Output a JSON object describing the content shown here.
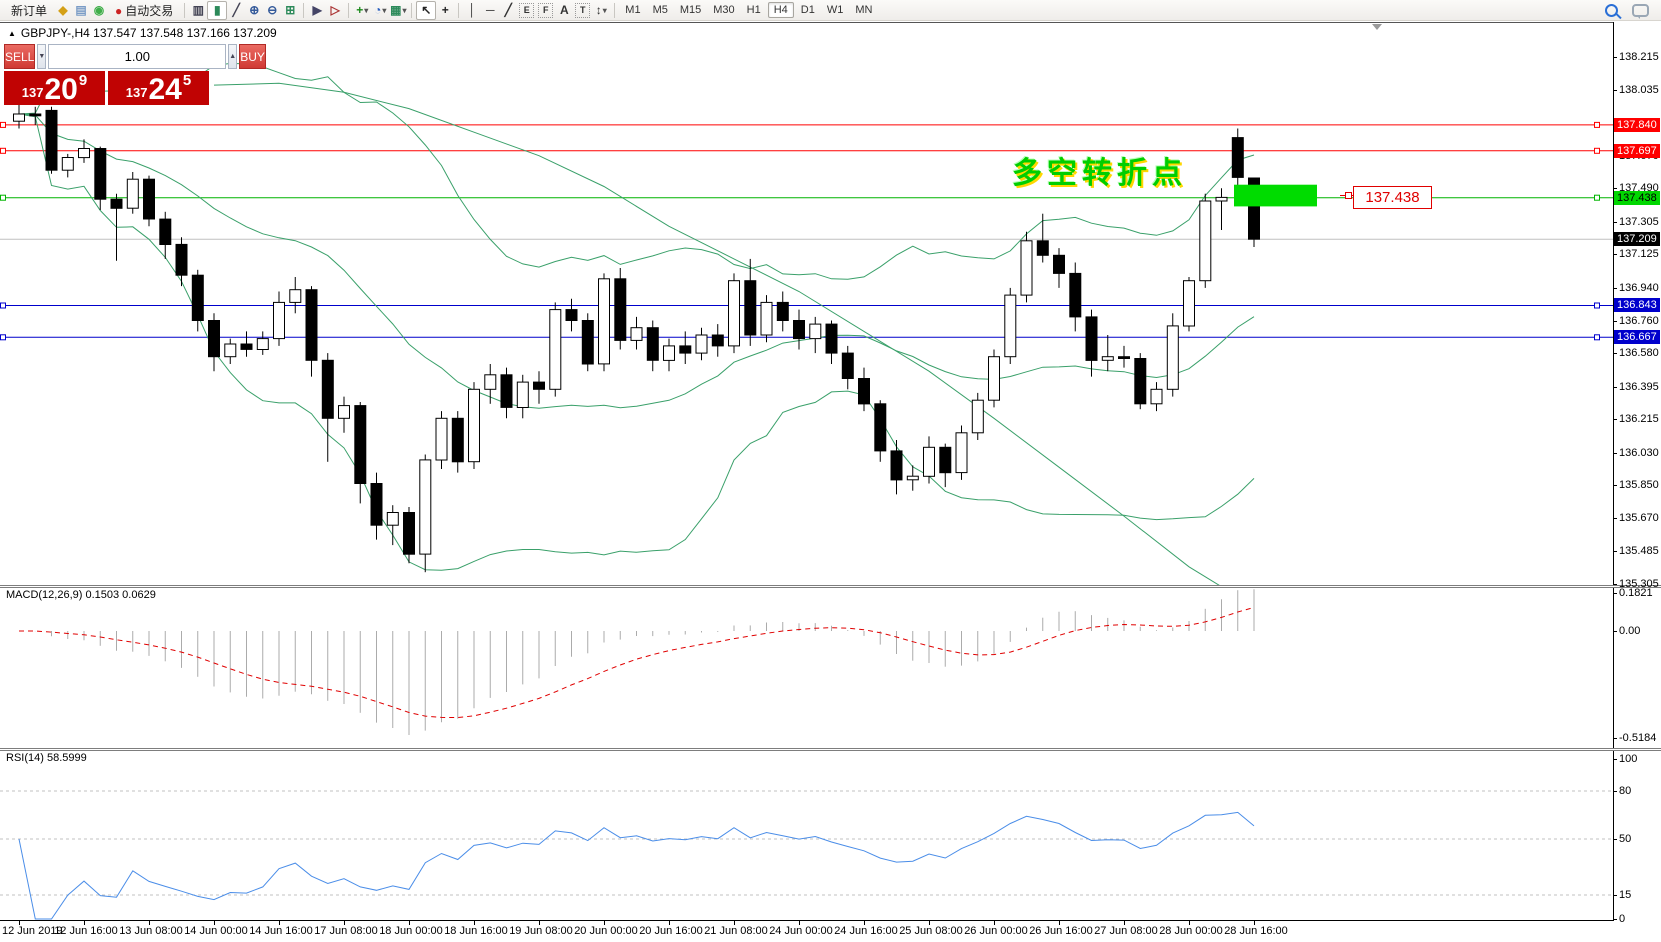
{
  "toolbar": {
    "items": [
      {
        "name": "new-order-button",
        "type": "text",
        "label": "新订单"
      },
      {
        "name": "gold-book-icon",
        "type": "icon",
        "glyph": "◆",
        "color": "#d4a017"
      },
      {
        "name": "metaeditor-icon",
        "type": "icon",
        "glyph": "▤",
        "color": "#7a9cc6"
      },
      {
        "name": "signals-icon",
        "type": "icon",
        "glyph": "◉",
        "color": "#3fae49"
      },
      {
        "name": "autotrading-button",
        "type": "icontext",
        "glyph": "●",
        "color": "#cc2222",
        "label": "自动交易"
      },
      {
        "type": "sep"
      },
      {
        "name": "bar-chart-icon",
        "type": "icon",
        "glyph": "▥",
        "color": "#445"
      },
      {
        "name": "candlestick-chart-icon",
        "type": "icon",
        "glyph": "▮",
        "color": "#2c8a5a",
        "active": true
      },
      {
        "name": "line-chart-icon",
        "type": "icon",
        "glyph": "╱",
        "color": "#445"
      },
      {
        "name": "zoom-in-icon",
        "type": "icon",
        "glyph": "⊕",
        "color": "#345a9a"
      },
      {
        "name": "zoom-out-icon",
        "type": "icon",
        "glyph": "⊖",
        "color": "#345a9a"
      },
      {
        "name": "tile-windows-icon",
        "type": "icon",
        "glyph": "⊞",
        "color": "#2c8a5a"
      },
      {
        "type": "sep"
      },
      {
        "name": "auto-scroll-icon",
        "type": "icon",
        "glyph": "▶",
        "color": "#446"
      },
      {
        "name": "chart-shift-icon",
        "type": "icon",
        "glyph": "▷",
        "color": "#a33"
      },
      {
        "type": "sep"
      },
      {
        "name": "add-indicator-button",
        "type": "icon",
        "glyph": "+",
        "color": "#1a8a1a",
        "caret": true
      },
      {
        "name": "periods-button",
        "type": "icon",
        "glyph": "◔",
        "color": "#2a5fbf",
        "caret": true
      },
      {
        "name": "template-button",
        "type": "icon",
        "glyph": "▦",
        "color": "#2c8a5a",
        "caret": true
      },
      {
        "type": "sep"
      },
      {
        "name": "cursor-icon",
        "type": "icon",
        "glyph": "↖",
        "color": "#222",
        "active": true
      },
      {
        "name": "crosshair-icon",
        "type": "icon",
        "glyph": "+",
        "color": "#222"
      },
      {
        "type": "sep"
      },
      {
        "name": "vertical-line-icon",
        "type": "icon",
        "glyph": "│",
        "color": "#333"
      },
      {
        "name": "horizontal-line-icon",
        "type": "icon",
        "glyph": "─",
        "color": "#333"
      },
      {
        "name": "trendline-icon",
        "type": "icon",
        "glyph": "╱",
        "color": "#333"
      },
      {
        "name": "equidistant-channel-icon",
        "type": "box",
        "glyph": "E"
      },
      {
        "name": "fibonacci-icon",
        "type": "box",
        "glyph": "F"
      },
      {
        "name": "text-icon",
        "type": "icon",
        "glyph": "A",
        "color": "#333"
      },
      {
        "name": "text-label-icon",
        "type": "box",
        "glyph": "T"
      },
      {
        "name": "arrows-icon",
        "type": "icon",
        "glyph": "↕",
        "color": "#333",
        "caret": true
      },
      {
        "type": "sep"
      }
    ],
    "timeframes": [
      "M1",
      "M5",
      "M15",
      "M30",
      "H1",
      "H4",
      "D1",
      "W1",
      "MN"
    ],
    "active_timeframe": "H4"
  },
  "chart": {
    "title_text": "GBPJPY-,H4  137.547 137.548 137.166 137.209",
    "annotation": "多空转折点",
    "callout": "137.438"
  },
  "symbol_panel": {
    "sell_label": "SELL",
    "buy_label": "BUY",
    "volume": "1.00",
    "bid_prefix": "137",
    "bid_big": "20",
    "bid_sup": "9",
    "ask_prefix": "137",
    "ask_big": "24",
    "ask_sup": "5"
  },
  "chart_data": {
    "type": "candlestick",
    "symbol": "GBPJPY",
    "timeframe": "H4",
    "ohlc": [
      [
        137.86,
        137.95,
        137.82,
        137.9
      ],
      [
        137.9,
        137.94,
        137.84,
        137.89
      ],
      [
        137.92,
        137.94,
        137.57,
        137.59
      ],
      [
        137.59,
        137.68,
        137.55,
        137.66
      ],
      [
        137.66,
        137.76,
        137.63,
        137.71
      ],
      [
        137.71,
        137.72,
        137.37,
        137.43
      ],
      [
        137.43,
        137.46,
        137.09,
        137.38
      ],
      [
        137.38,
        137.58,
        137.35,
        137.54
      ],
      [
        137.54,
        137.56,
        137.28,
        137.32
      ],
      [
        137.32,
        137.36,
        137.1,
        137.18
      ],
      [
        137.18,
        137.22,
        136.95,
        137.01
      ],
      [
        137.01,
        137.04,
        136.7,
        136.76
      ],
      [
        136.76,
        136.8,
        136.48,
        136.56
      ],
      [
        136.56,
        136.66,
        136.52,
        136.63
      ],
      [
        136.63,
        136.7,
        136.56,
        136.6
      ],
      [
        136.6,
        136.7,
        136.57,
        136.66
      ],
      [
        136.66,
        136.92,
        136.62,
        136.86
      ],
      [
        136.86,
        137.0,
        136.8,
        136.93
      ],
      [
        136.93,
        136.95,
        136.45,
        136.54
      ],
      [
        136.54,
        136.58,
        135.98,
        136.22
      ],
      [
        136.22,
        136.34,
        136.14,
        136.29
      ],
      [
        136.29,
        136.31,
        135.75,
        135.86
      ],
      [
        135.86,
        135.92,
        135.55,
        135.63
      ],
      [
        135.63,
        135.74,
        135.52,
        135.7
      ],
      [
        135.7,
        135.73,
        135.42,
        135.47
      ],
      [
        135.47,
        136.02,
        135.37,
        135.99
      ],
      [
        135.99,
        136.26,
        135.94,
        136.22
      ],
      [
        136.22,
        136.26,
        135.92,
        135.98
      ],
      [
        135.98,
        136.42,
        135.94,
        136.38
      ],
      [
        136.38,
        136.52,
        136.3,
        136.46
      ],
      [
        136.46,
        136.5,
        136.22,
        136.28
      ],
      [
        136.28,
        136.46,
        136.22,
        136.42
      ],
      [
        136.42,
        136.48,
        136.3,
        136.38
      ],
      [
        136.38,
        136.86,
        136.34,
        136.82
      ],
      [
        136.82,
        136.88,
        136.7,
        136.76
      ],
      [
        136.76,
        136.8,
        136.48,
        136.52
      ],
      [
        136.52,
        137.02,
        136.48,
        136.99
      ],
      [
        136.99,
        137.05,
        136.6,
        136.65
      ],
      [
        136.65,
        136.78,
        136.6,
        136.72
      ],
      [
        136.72,
        136.76,
        136.48,
        136.54
      ],
      [
        136.54,
        136.66,
        136.48,
        136.62
      ],
      [
        136.62,
        136.7,
        136.52,
        136.58
      ],
      [
        136.58,
        136.72,
        136.54,
        136.68
      ],
      [
        136.68,
        136.74,
        136.56,
        136.62
      ],
      [
        136.62,
        137.02,
        136.58,
        136.98
      ],
      [
        136.98,
        137.1,
        136.62,
        136.68
      ],
      [
        136.68,
        136.9,
        136.64,
        136.86
      ],
      [
        136.86,
        136.92,
        136.7,
        136.76
      ],
      [
        136.76,
        136.82,
        136.6,
        136.66
      ],
      [
        136.66,
        136.78,
        136.58,
        136.74
      ],
      [
        136.74,
        136.76,
        136.52,
        136.58
      ],
      [
        136.58,
        136.62,
        136.38,
        136.44
      ],
      [
        136.44,
        136.5,
        136.26,
        136.3
      ],
      [
        136.3,
        136.32,
        135.98,
        136.04
      ],
      [
        136.04,
        136.1,
        135.8,
        135.88
      ],
      [
        135.88,
        135.96,
        135.82,
        135.9
      ],
      [
        135.9,
        136.12,
        135.86,
        136.06
      ],
      [
        136.06,
        136.08,
        135.84,
        135.92
      ],
      [
        135.92,
        136.18,
        135.88,
        136.14
      ],
      [
        136.14,
        136.36,
        136.1,
        136.32
      ],
      [
        136.32,
        136.6,
        136.28,
        136.56
      ],
      [
        136.56,
        136.94,
        136.52,
        136.9
      ],
      [
        136.9,
        137.25,
        136.86,
        137.2
      ],
      [
        137.2,
        137.35,
        137.08,
        137.12
      ],
      [
        137.12,
        137.16,
        136.94,
        137.02
      ],
      [
        137.02,
        137.08,
        136.7,
        136.78
      ],
      [
        136.78,
        136.82,
        136.45,
        136.54
      ],
      [
        136.54,
        136.68,
        136.48,
        136.56
      ],
      [
        136.56,
        136.62,
        136.5,
        136.55
      ],
      [
        136.55,
        136.58,
        136.27,
        136.3
      ],
      [
        136.3,
        136.42,
        136.26,
        136.38
      ],
      [
        136.38,
        136.8,
        136.34,
        136.73
      ],
      [
        136.73,
        137.0,
        136.7,
        136.98
      ],
      [
        136.98,
        137.46,
        136.94,
        137.42
      ],
      [
        137.42,
        137.49,
        137.26,
        137.44
      ],
      [
        137.77,
        137.82,
        137.5,
        137.55
      ],
      [
        137.547,
        137.548,
        137.166,
        137.209
      ]
    ],
    "time_ticks": [
      "12 Jun 2019",
      "12 Jun 16:00",
      "13 Jun 08:00",
      "14 Jun 00:00",
      "14 Jun 16:00",
      "17 Jun 08:00",
      "18 Jun 00:00",
      "18 Jun 16:00",
      "19 Jun 08:00",
      "20 Jun 00:00",
      "20 Jun 16:00",
      "21 Jun 08:00",
      "24 Jun 00:00",
      "24 Jun 16:00",
      "25 Jun 08:00",
      "26 Jun 00:00",
      "26 Jun 16:00",
      "27 Jun 08:00",
      "28 Jun 00:00",
      "28 Jun 16:00"
    ],
    "y_ticks": [
      "138.215",
      "138.035",
      "137.670",
      "137.490",
      "137.305",
      "137.125",
      "136.940",
      "136.760",
      "136.580",
      "136.395",
      "136.215",
      "136.030",
      "135.850",
      "135.670",
      "135.485",
      "135.305"
    ],
    "lines": [
      {
        "price": 137.84,
        "color": "#ff0000",
        "label_bg": "#ff0000",
        "label_fg": "#ffffff",
        "handles": true
      },
      {
        "price": 137.697,
        "color": "#ff0000",
        "label_bg": "#ff0000",
        "label_fg": "#ffffff",
        "handles": true
      },
      {
        "price": 137.438,
        "color": "#00b400",
        "label_bg": "#00d700",
        "label_fg": "#000000",
        "handles": true
      },
      {
        "price": 137.209,
        "color": "#c0c0c0",
        "label_bg": "#000000",
        "label_fg": "#ffffff",
        "handles": false
      },
      {
        "price": 136.843,
        "color": "#0000cc",
        "label_bg": "#0000cc",
        "label_fg": "#ffffff",
        "handles": true
      },
      {
        "price": 136.667,
        "color": "#0000cc",
        "label_bg": "#0000cc",
        "label_fg": "#ffffff",
        "handles": true
      }
    ],
    "overlays": {
      "bollinger": {
        "period": 20,
        "deviation": 2,
        "color": "#3aa06a"
      },
      "long_ma": {
        "color": "#3aa06a",
        "points": [
          [
            12,
            138.06
          ],
          [
            16,
            138.07
          ],
          [
            20,
            138.02
          ],
          [
            24,
            137.93
          ],
          [
            28,
            137.8
          ],
          [
            32,
            137.67
          ],
          [
            36,
            137.5
          ],
          [
            40,
            137.28
          ],
          [
            44,
            137.1
          ],
          [
            48,
            136.92
          ],
          [
            52,
            136.7
          ],
          [
            56,
            136.48
          ],
          [
            60,
            136.22
          ],
          [
            64,
            135.95
          ],
          [
            68,
            135.68
          ],
          [
            72,
            135.4
          ],
          [
            76,
            135.18
          ]
        ]
      }
    },
    "indicators": [
      {
        "name": "MACD",
        "label": "MACD(12,26,9) 0.1503 0.0629",
        "params": [
          12,
          26,
          9
        ],
        "axis": [
          "0.1821",
          "0.00",
          "-0.5184"
        ],
        "axis_values": [
          0.1821,
          0,
          -0.5184
        ],
        "hist_color": "#ababab",
        "signal_color": "#e00000"
      },
      {
        "name": "RSI",
        "label": "RSI(14) 58.5999",
        "period": 14,
        "axis": [
          "100",
          "80",
          "50",
          "15",
          "0"
        ],
        "axis_values": [
          100,
          80,
          50,
          15,
          0
        ],
        "levels": [
          80,
          50,
          15
        ],
        "color": "#4a8de8"
      }
    ],
    "shapes": [
      {
        "type": "rectangle",
        "name": "order-block-rectangle",
        "price_top": 137.51,
        "price_bottom": 137.39,
        "x": 1234,
        "w": 83,
        "fill": "#00dc00"
      }
    ]
  }
}
